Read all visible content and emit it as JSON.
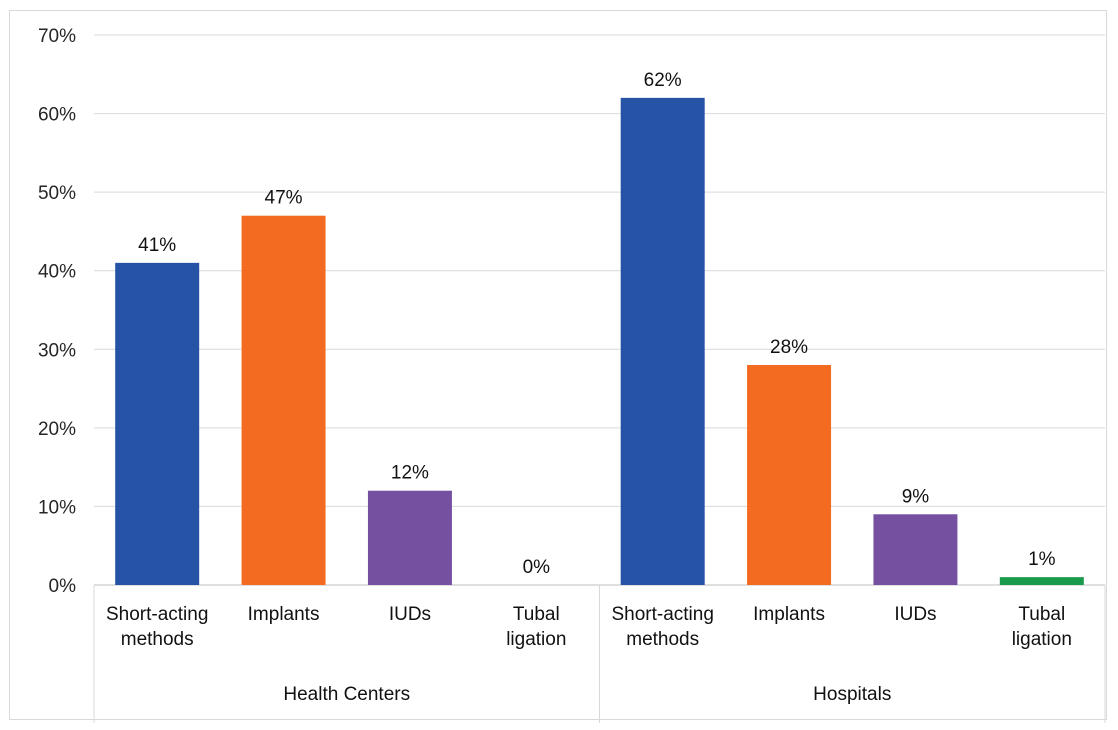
{
  "chart_data": {
    "type": "bar",
    "ylim": [
      0,
      70
    ],
    "ytick_step": 10,
    "ytick_format": "%",
    "grid": true,
    "legend": "none",
    "groups": [
      {
        "label": "Health Centers",
        "categories": [
          {
            "label": [
              "Short-acting",
              "methods"
            ],
            "value": 41,
            "data_label": "41%",
            "color": "#2653a6"
          },
          {
            "label": [
              "Implants"
            ],
            "value": 47,
            "data_label": "47%",
            "color": "#f26b21"
          },
          {
            "label": [
              "IUDs"
            ],
            "value": 12,
            "data_label": "12%",
            "color": "#7550a1"
          },
          {
            "label": [
              "Tubal",
              "ligation"
            ],
            "value": 0,
            "data_label": "0%",
            "color": "#1a9a4b"
          }
        ]
      },
      {
        "label": "Hospitals",
        "categories": [
          {
            "label": [
              "Short-acting",
              "methods"
            ],
            "value": 62,
            "data_label": "62%",
            "color": "#2653a6"
          },
          {
            "label": [
              "Implants"
            ],
            "value": 28,
            "data_label": "28%",
            "color": "#f26b21"
          },
          {
            "label": [
              "IUDs"
            ],
            "value": 9,
            "data_label": "9%",
            "color": "#7550a1"
          },
          {
            "label": [
              "Tubal",
              "ligation"
            ],
            "value": 1,
            "data_label": "1%",
            "color": "#1a9a4b"
          }
        ]
      }
    ]
  }
}
